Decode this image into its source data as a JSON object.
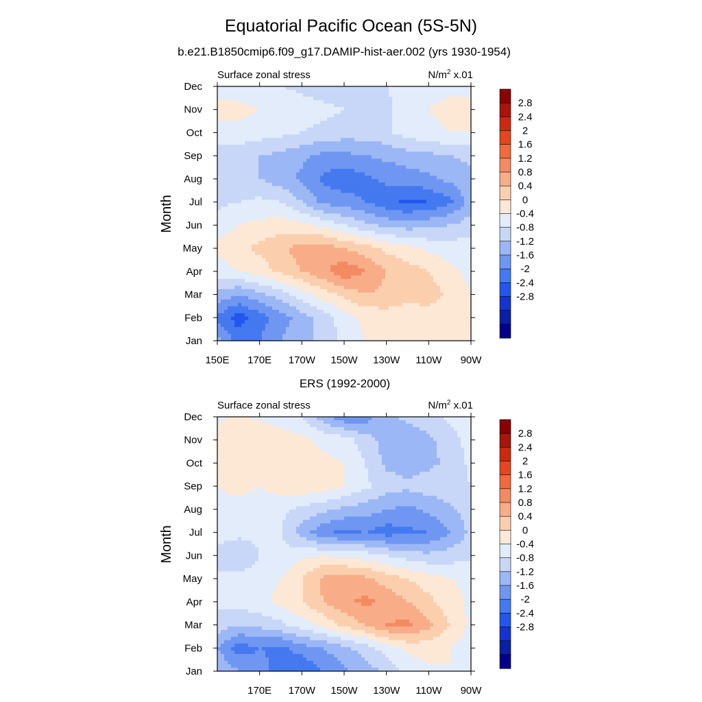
{
  "figure": {
    "title": "Equatorial Pacific Ocean (5S-5N)",
    "subtitle": "b.e21.B1850cmip6.f09_g17.DAMIP-hist-aer.002 (yrs 1930-1954)"
  },
  "colors": {
    "levels": [
      "#00008c",
      "#0a1fa6",
      "#1533d0",
      "#2256ee",
      "#4479f0",
      "#6f97f2",
      "#9cb7f5",
      "#c8d7f7",
      "#e2ecfa",
      "#fde8d5",
      "#fbcfae",
      "#f8ad88",
      "#f48a62",
      "#f06a3e",
      "#e5461f",
      "#cc2a10",
      "#a8150a",
      "#8b0000"
    ]
  },
  "chart_data": [
    {
      "type": "heatmap",
      "panel_title": "",
      "left_label": "Surface zonal stress",
      "units_text": "N/m",
      "units_sup": "2",
      "units_scale": "x.01",
      "ylabel": "Month",
      "x_ticks": [
        "150E",
        "170E",
        "170W",
        "150W",
        "130W",
        "110W",
        "90W"
      ],
      "x_values": [
        150,
        170,
        190,
        210,
        230,
        250,
        270
      ],
      "y_ticks": [
        "Jan",
        "Feb",
        "Mar",
        "Apr",
        "May",
        "Jun",
        "Jul",
        "Aug",
        "Sep",
        "Oct",
        "Nov",
        "Dec"
      ],
      "contour_levels": [
        -2.8,
        -2.4,
        -2.0,
        -1.6,
        -1.2,
        -0.8,
        -0.4,
        0,
        0.4,
        0.8,
        1.2,
        1.6,
        2.0,
        2.4,
        2.8
      ],
      "grid": false,
      "grid_x": [
        150,
        160,
        170,
        180,
        190,
        200,
        210,
        220,
        230,
        240,
        250,
        260,
        270
      ],
      "grid_values": [
        [
          -0.6,
          -1.4,
          -1.2,
          -0.8,
          -0.5,
          -0.3,
          0.1,
          0.4,
          0.5,
          0.6,
          0.5,
          0.4,
          0.4
        ],
        [
          -1.3,
          -1.8,
          -1.4,
          -1.0,
          -0.6,
          -0.2,
          0.2,
          0.5,
          0.6,
          0.6,
          0.6,
          0.5,
          0.4
        ],
        [
          -0.5,
          -0.8,
          -0.5,
          -0.2,
          0.2,
          0.6,
          0.9,
          1.2,
          1.1,
          0.9,
          1.0,
          0.7,
          0.4
        ],
        [
          0.2,
          0.4,
          0.6,
          0.9,
          1.2,
          1.5,
          1.9,
          1.6,
          1.2,
          1.0,
          0.8,
          0.5,
          0.3
        ],
        [
          0.5,
          0.7,
          0.9,
          1.1,
          1.4,
          1.4,
          1.2,
          1.0,
          0.7,
          0.5,
          0.3,
          0.2,
          0.2
        ],
        [
          0.2,
          0.4,
          0.5,
          0.6,
          0.5,
          0.3,
          0.0,
          -0.3,
          -0.5,
          -0.6,
          -0.5,
          -0.4,
          -0.2
        ],
        [
          -0.1,
          0.0,
          0.1,
          0.0,
          -0.4,
          -0.9,
          -1.0,
          -1.2,
          -1.5,
          -1.7,
          -1.6,
          -1.3,
          -0.6
        ],
        [
          -0.2,
          -0.3,
          -0.4,
          -0.6,
          -0.9,
          -1.3,
          -1.5,
          -1.3,
          -1.1,
          -1.0,
          -0.9,
          -0.7,
          -0.5
        ],
        [
          -0.2,
          -0.3,
          -0.4,
          -0.5,
          -0.7,
          -0.9,
          -0.9,
          -0.8,
          -0.7,
          -0.6,
          -0.5,
          -0.4,
          -0.3
        ],
        [
          0.3,
          0.3,
          0.2,
          0.1,
          0.0,
          -0.1,
          -0.2,
          -0.2,
          -0.1,
          0.2,
          0.3,
          0.4,
          0.4
        ],
        [
          0.5,
          0.5,
          0.4,
          0.3,
          0.2,
          0.1,
          0.0,
          -0.1,
          -0.1,
          0.2,
          0.4,
          0.5,
          0.5
        ],
        [
          0.2,
          0.2,
          0.1,
          0.0,
          -0.1,
          -0.2,
          -0.2,
          -0.1,
          0.0,
          0.2,
          0.3,
          0.3,
          0.3
        ]
      ],
      "colorbar_labels": [
        "2.8",
        "2.4",
        "2",
        "1.6",
        "1.2",
        "0.8",
        "0.4",
        "0",
        "-0.4",
        "-0.8",
        "-1.2",
        "-1.6",
        "-2",
        "-2.4",
        "-2.8"
      ]
    },
    {
      "type": "heatmap",
      "panel_title": "ERS (1992-2000)",
      "left_label": "Surface zonal stress",
      "units_text": "N/m",
      "units_sup": "2",
      "units_scale": "x.01",
      "ylabel": "Month",
      "x_ticks": [
        "170E",
        "170W",
        "150W",
        "130W",
        "110W",
        "90W"
      ],
      "x_values": [
        170,
        190,
        210,
        230,
        250,
        270
      ],
      "y_ticks": [
        "Jan",
        "Feb",
        "Mar",
        "Apr",
        "May",
        "Jun",
        "Jul",
        "Aug",
        "Sep",
        "Oct",
        "Nov",
        "Dec"
      ],
      "contour_levels": [
        -2.8,
        -2.4,
        -2.0,
        -1.6,
        -1.2,
        -0.8,
        -0.4,
        0,
        0.4,
        0.8,
        1.2,
        1.6,
        2.0,
        2.4,
        2.8
      ],
      "grid": false,
      "grid_x": [
        150,
        160,
        170,
        180,
        190,
        200,
        210,
        220,
        230,
        240,
        250,
        260,
        270
      ],
      "grid_values": [
        [
          -0.4,
          -0.8,
          -1.0,
          -1.4,
          -1.6,
          -1.2,
          -0.9,
          -0.6,
          -0.3,
          0.1,
          0.3,
          0.4,
          0.3
        ],
        [
          -0.8,
          -1.4,
          -1.2,
          -1.3,
          -1.0,
          -0.8,
          -0.5,
          -0.2,
          0.2,
          0.5,
          0.6,
          0.4,
          0.2
        ],
        [
          -0.2,
          -0.4,
          -0.3,
          -0.1,
          0.2,
          0.5,
          0.9,
          1.2,
          1.6,
          1.7,
          1.3,
          0.8,
          0.3
        ],
        [
          0.1,
          0.2,
          0.3,
          0.5,
          0.8,
          1.2,
          1.5,
          1.7,
          1.5,
          1.2,
          0.9,
          0.6,
          0.3
        ],
        [
          0.1,
          0.1,
          0.2,
          0.4,
          0.8,
          1.3,
          1.4,
          1.3,
          1.0,
          0.8,
          0.6,
          0.4,
          0.3
        ],
        [
          -0.2,
          -0.3,
          0.0,
          0.1,
          0.3,
          0.4,
          0.3,
          0.2,
          0.0,
          -0.2,
          -0.3,
          -0.2,
          -0.1
        ],
        [
          0.2,
          0.1,
          0.1,
          0.0,
          -0.6,
          -1.1,
          -1.3,
          -1.2,
          -1.4,
          -1.3,
          -1.2,
          -0.8,
          -0.3
        ],
        [
          0.3,
          0.3,
          0.2,
          0.1,
          -0.1,
          -0.3,
          -0.5,
          -0.6,
          -0.8,
          -0.9,
          -0.7,
          -0.5,
          -0.2
        ],
        [
          0.4,
          0.5,
          0.4,
          0.6,
          0.7,
          0.6,
          0.4,
          0.1,
          -0.2,
          -0.3,
          -0.2,
          -0.1,
          0.0
        ],
        [
          0.5,
          0.5,
          0.5,
          0.6,
          0.6,
          0.5,
          0.4,
          0.0,
          -0.5,
          -0.6,
          -0.5,
          -0.3,
          0.1
        ],
        [
          0.6,
          0.6,
          0.8,
          0.6,
          0.5,
          0.3,
          0.2,
          -0.2,
          -0.6,
          -0.7,
          -0.5,
          -0.2,
          0.2
        ],
        [
          0.3,
          0.5,
          0.3,
          0.2,
          0.0,
          -0.6,
          -1.1,
          -1.0,
          -0.5,
          -0.3,
          -0.1,
          0.1,
          0.2
        ]
      ],
      "colorbar_labels": [
        "2.8",
        "2.4",
        "2",
        "1.6",
        "1.2",
        "0.8",
        "0.4",
        "0",
        "-0.4",
        "-0.8",
        "-1.2",
        "-1.6",
        "-2",
        "-2.4",
        "-2.8"
      ]
    }
  ]
}
